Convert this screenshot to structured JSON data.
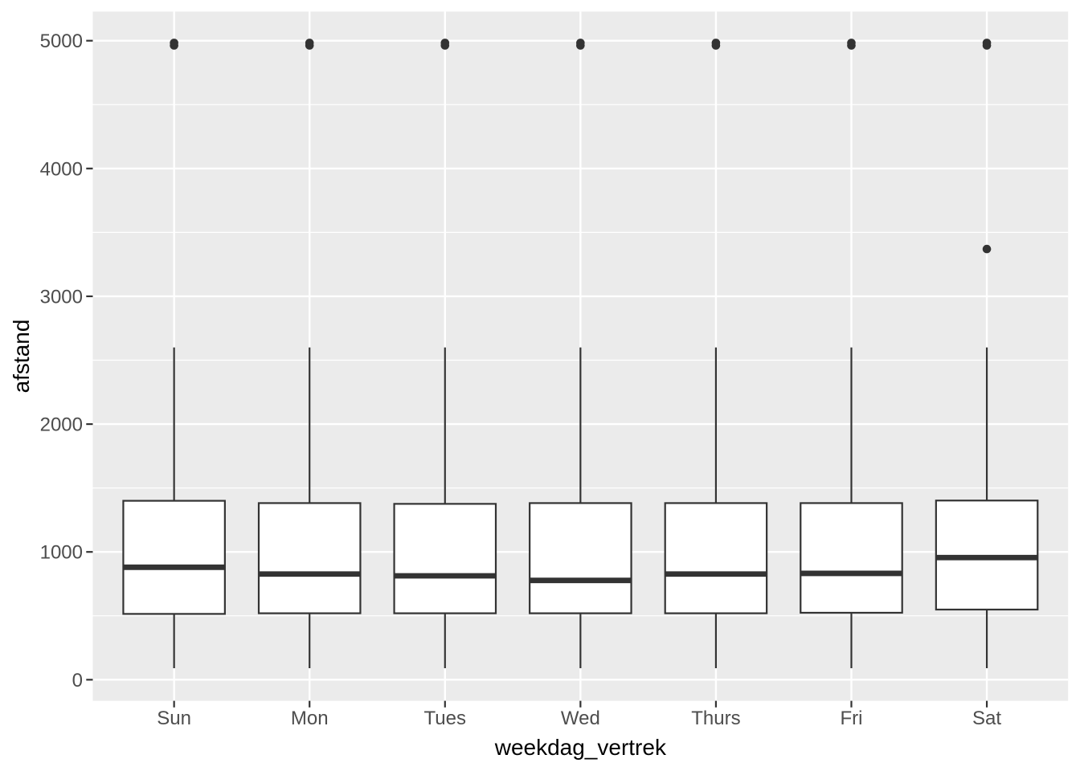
{
  "figure": {
    "background": "#FFFFFF"
  },
  "chart_data": {
    "type": "boxplot",
    "title": "",
    "xlabel": "weekdag_vertrek",
    "ylabel": "afstand",
    "categories": [
      "Sun",
      "Mon",
      "Tues",
      "Wed",
      "Thurs",
      "Fri",
      "Sat"
    ],
    "yticks": [
      0,
      1000,
      2000,
      3000,
      4000,
      5000
    ],
    "ytick_labels": [
      "0",
      "1000",
      "2000",
      "3000",
      "4000",
      "5000"
    ],
    "yminor_ticks": [
      500,
      1500,
      2500,
      3500,
      4500
    ],
    "ylim": [
      -165,
      5228
    ],
    "grid": "white major and minor horizontal lines plus white vertical major lines on grey panel",
    "legend_position": "none",
    "series": [
      {
        "category": "Sun",
        "whisker_low": 90,
        "q1": 515,
        "median": 880,
        "q3": 1400,
        "whisker_high": 2600,
        "outliers": [
          4963,
          4983
        ]
      },
      {
        "category": "Mon",
        "whisker_low": 90,
        "q1": 520,
        "median": 827,
        "q3": 1382,
        "whisker_high": 2600,
        "outliers": [
          4963,
          4983
        ]
      },
      {
        "category": "Tues",
        "whisker_low": 90,
        "q1": 520,
        "median": 813,
        "q3": 1376,
        "whisker_high": 2600,
        "outliers": [
          4963,
          4983
        ]
      },
      {
        "category": "Wed",
        "whisker_low": 90,
        "q1": 520,
        "median": 777,
        "q3": 1382,
        "whisker_high": 2600,
        "outliers": [
          4963,
          4983
        ]
      },
      {
        "category": "Thurs",
        "whisker_low": 90,
        "q1": 520,
        "median": 827,
        "q3": 1382,
        "whisker_high": 2600,
        "outliers": [
          4963,
          4983
        ]
      },
      {
        "category": "Fri",
        "whisker_low": 90,
        "q1": 524,
        "median": 832,
        "q3": 1382,
        "whisker_high": 2600,
        "outliers": [
          4963,
          4983
        ]
      },
      {
        "category": "Sat",
        "whisker_low": 90,
        "q1": 549,
        "median": 956,
        "q3": 1402,
        "whisker_high": 2600,
        "outliers": [
          3370,
          4963,
          4983
        ]
      }
    ],
    "colors": {
      "panel_background": "#EBEBEB",
      "grid": "#FFFFFF",
      "box_stroke": "#333333",
      "box_fill": "#FFFFFF",
      "outlier": "#333333",
      "tick_mark": "#333333",
      "tick_label": "#4D4D4D",
      "axis_title": "#000000"
    }
  }
}
